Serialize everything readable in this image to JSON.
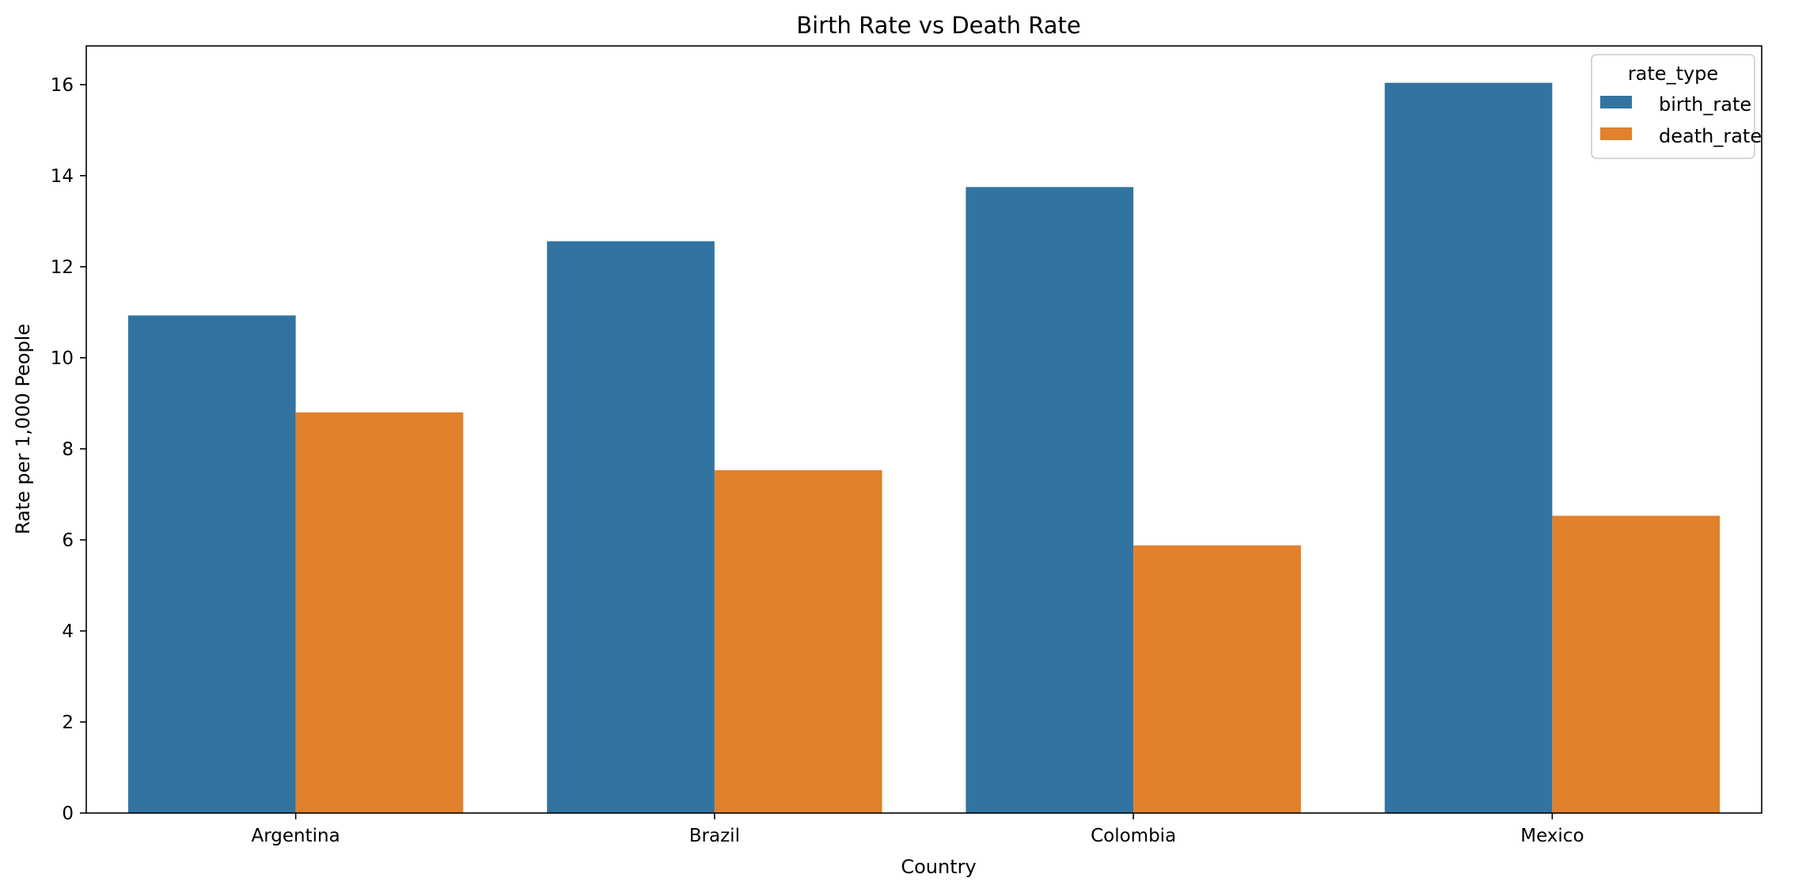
{
  "chart_data": {
    "type": "bar",
    "title": "Birth Rate vs Death Rate",
    "xlabel": "Country",
    "ylabel": "Rate per 1,000 People",
    "categories": [
      "Argentina",
      "Brazil",
      "Colombia",
      "Mexico"
    ],
    "series": [
      {
        "name": "birth_rate",
        "color": "#3274a1",
        "values": [
          10.93,
          12.56,
          13.75,
          16.04
        ]
      },
      {
        "name": "death_rate",
        "color": "#e1812c",
        "values": [
          8.8,
          7.53,
          5.88,
          6.53
        ]
      }
    ],
    "ylim": [
      0,
      16.85
    ],
    "yticks": [
      0,
      2,
      4,
      6,
      8,
      10,
      12,
      14,
      16
    ],
    "grid": false,
    "legend": {
      "title": "rate_type",
      "placement": "top-right"
    }
  }
}
